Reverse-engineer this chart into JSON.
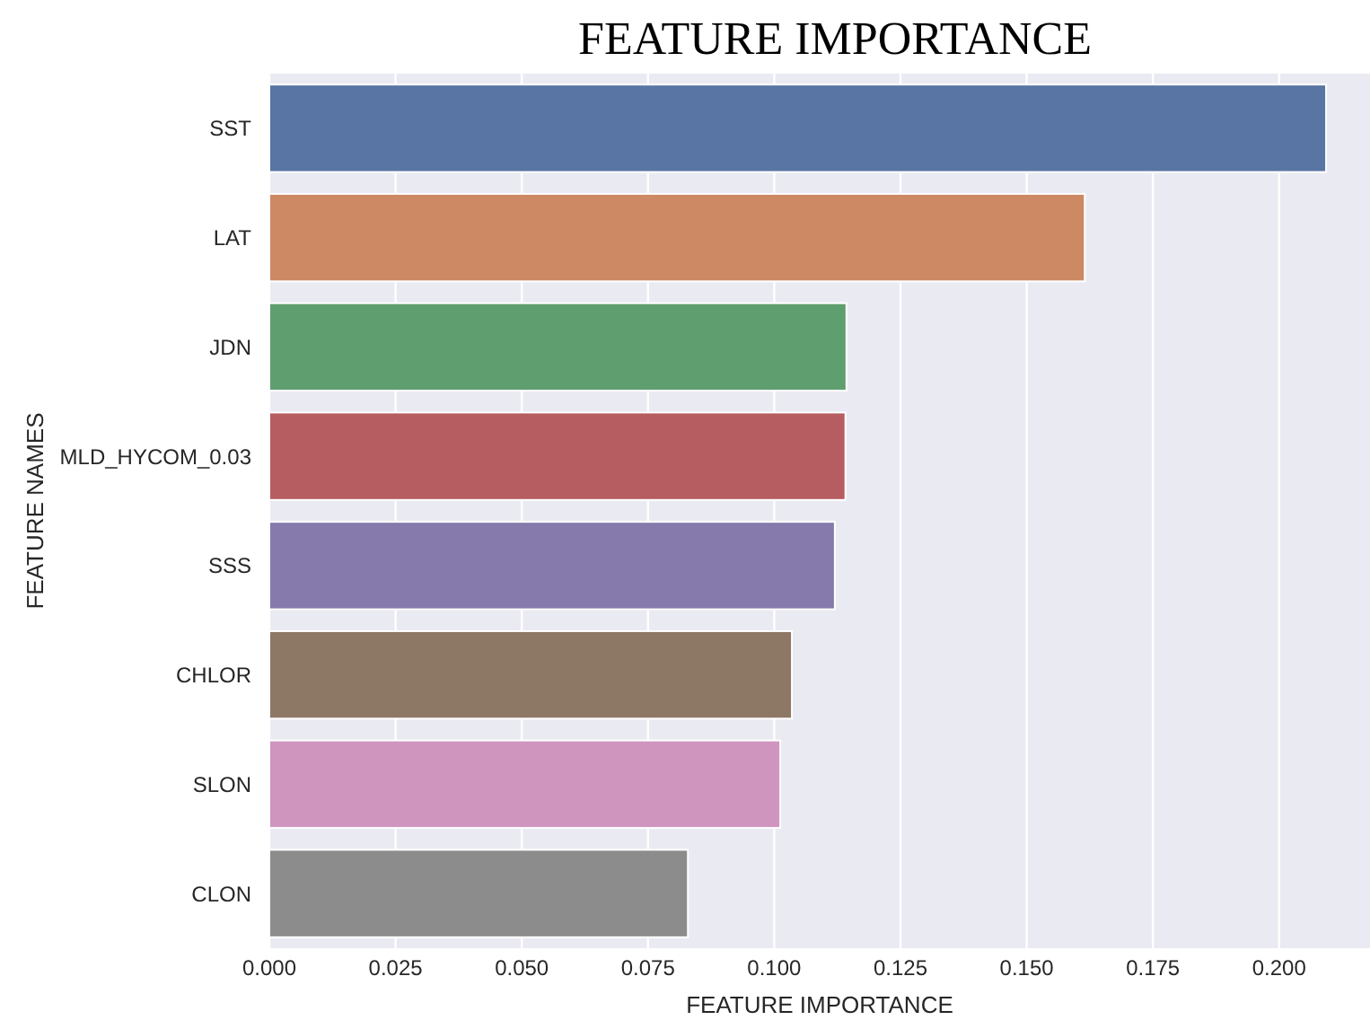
{
  "chart_data": {
    "type": "bar",
    "orientation": "horizontal",
    "title": "FEATURE IMPORTANCE",
    "xlabel": "FEATURE IMPORTANCE",
    "ylabel": "FEATURE NAMES",
    "categories": [
      "SST",
      "LAT",
      "JDN",
      "MLD_HYCOM_0.03",
      "SSS",
      "CHLOR",
      "SLON",
      "CLON"
    ],
    "values": [
      0.2093,
      0.1615,
      0.1143,
      0.1141,
      0.112,
      0.1035,
      0.1012,
      0.0829
    ],
    "colors": [
      "#5875a4",
      "#cc8963",
      "#5f9e6e",
      "#b55d60",
      "#857aab",
      "#8d7866",
      "#d095bf",
      "#8c8c8c"
    ],
    "xlim": [
      0,
      0.218
    ],
    "xticks": [
      {
        "value": 0,
        "label": "0.000"
      },
      {
        "value": 0.025,
        "label": "0.025"
      },
      {
        "value": 0.05,
        "label": "0.050"
      },
      {
        "value": 0.075,
        "label": "0.075"
      },
      {
        "value": 0.1,
        "label": "0.100"
      },
      {
        "value": 0.125,
        "label": "0.125"
      },
      {
        "value": 0.15,
        "label": "0.150"
      },
      {
        "value": 0.175,
        "label": "0.175"
      },
      {
        "value": 0.2,
        "label": "0.200"
      }
    ],
    "grid": "x"
  }
}
